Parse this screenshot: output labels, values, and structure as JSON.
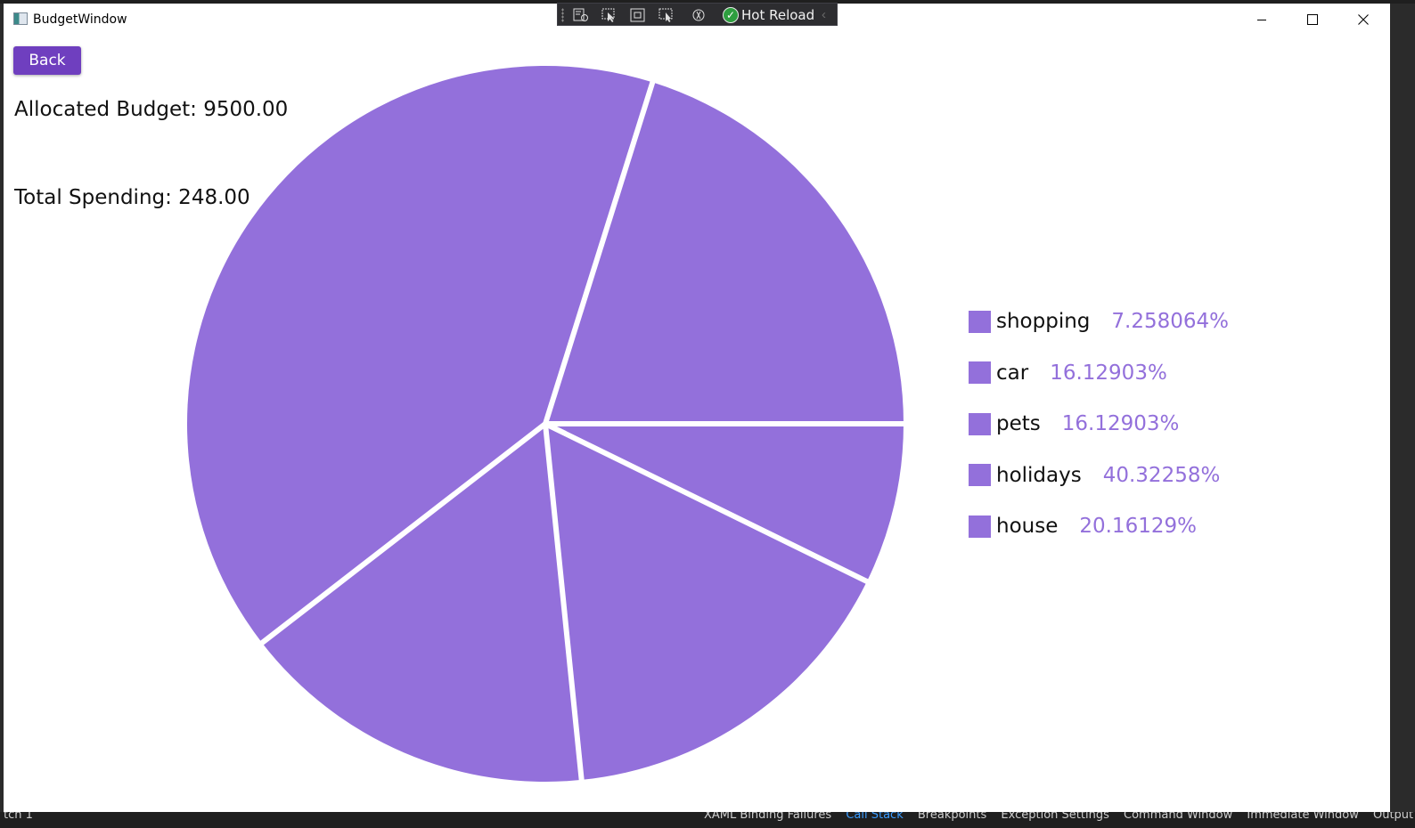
{
  "ide": {
    "bottom_left_text": "tch 1",
    "status_items": [
      "XAML Binding Failures",
      "Call Stack",
      "Breakpoints",
      "Exception Settings",
      "Command Window",
      "Immediate Window",
      "Output"
    ]
  },
  "window": {
    "title": "BudgetWindow",
    "icon": "app-window-icon"
  },
  "hot_reload_toolbar": {
    "label": "Hot Reload",
    "tools": [
      "live-visual-tree-icon",
      "select-element-icon",
      "display-adorners-icon",
      "track-focus-icon",
      "binding-failures-icon"
    ]
  },
  "page": {
    "back_label": "Back",
    "allocated_budget": "Allocated Budget: 9500.00",
    "total_spending": "Total Spending: 248.00"
  },
  "colors": {
    "accent": "#6f3fbf",
    "slice": "#9370db",
    "slice_separator": "#ffffff"
  },
  "chart_data": {
    "type": "pie",
    "categories": [
      "shopping",
      "car",
      "pets",
      "holidays",
      "house"
    ],
    "values": [
      7.258064,
      16.12903,
      16.12903,
      40.32258,
      20.16129
    ],
    "labels": [
      "7.258064%",
      "16.12903%",
      "16.12903%",
      "40.32258%",
      "20.16129%"
    ],
    "legend_position": "right"
  }
}
